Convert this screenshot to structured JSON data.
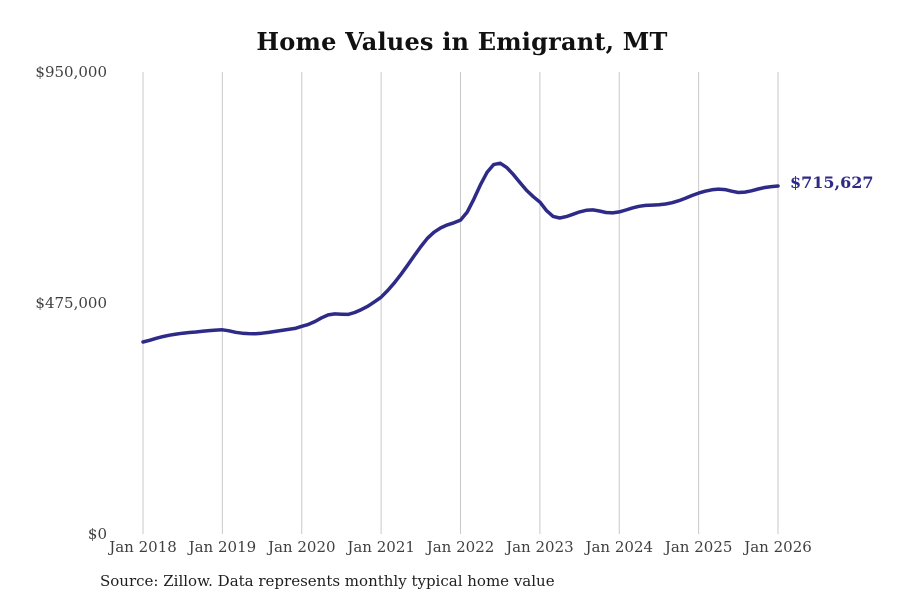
{
  "chart_data": {
    "type": "line",
    "title": "Home Values in Emigrant, MT",
    "source": "Source: Zillow. Data represents monthly typical home value",
    "x_tick_labels": [
      "Jan 2018",
      "Jan 2019",
      "Jan 2020",
      "Jan 2021",
      "Jan 2022",
      "Jan 2023",
      "Jan 2024",
      "Jan 2025",
      "Jan 2026"
    ],
    "y_ticks": [
      {
        "value": 950000,
        "label": "$950,000"
      },
      {
        "value": 475000,
        "label": "$475,000"
      },
      {
        "value": 0,
        "label": "$0"
      }
    ],
    "ylim": [
      0,
      950000
    ],
    "grid": "vertical-only",
    "legend": "none",
    "end_label": "$715,627",
    "series": [
      {
        "name": "Monthly typical home value",
        "start": "2018-01",
        "interval": "monthly",
        "values": [
          394800,
          398200,
          402500,
          406000,
          408800,
          411000,
          412800,
          414300,
          415400,
          416800,
          418300,
          419300,
          419800,
          417900,
          414800,
          412900,
          412000,
          411600,
          412900,
          414600,
          416500,
          418600,
          420700,
          422800,
          427000,
          431000,
          437000,
          444500,
          450500,
          452500,
          452000,
          451500,
          455500,
          461500,
          468500,
          477500,
          487000,
          500800,
          516500,
          534000,
          552800,
          572000,
          591000,
          608000,
          620500,
          629500,
          635500,
          640000,
          645500,
          661500,
          688000,
          717500,
          743500,
          759500,
          762500,
          753500,
          739000,
          722500,
          706500,
          693500,
          682500,
          665000,
          653000,
          649800,
          652600,
          657400,
          662300,
          665600,
          666400,
          664200,
          661100,
          660300,
          662300,
          666200,
          670500,
          673800,
          675700,
          676400,
          677200,
          678600,
          681200,
          685300,
          690400,
          696100,
          700900,
          704900,
          707800,
          709300,
          708100,
          704900,
          702200,
          703000,
          705800,
          709500,
          712400,
          714300,
          715627
        ]
      }
    ],
    "colors": {
      "line": "#2e2a87",
      "annotation": "#2e2a87",
      "grid": "#c9c9c9",
      "tick_text": "#3f3f3f",
      "title_text": "#111111"
    }
  }
}
